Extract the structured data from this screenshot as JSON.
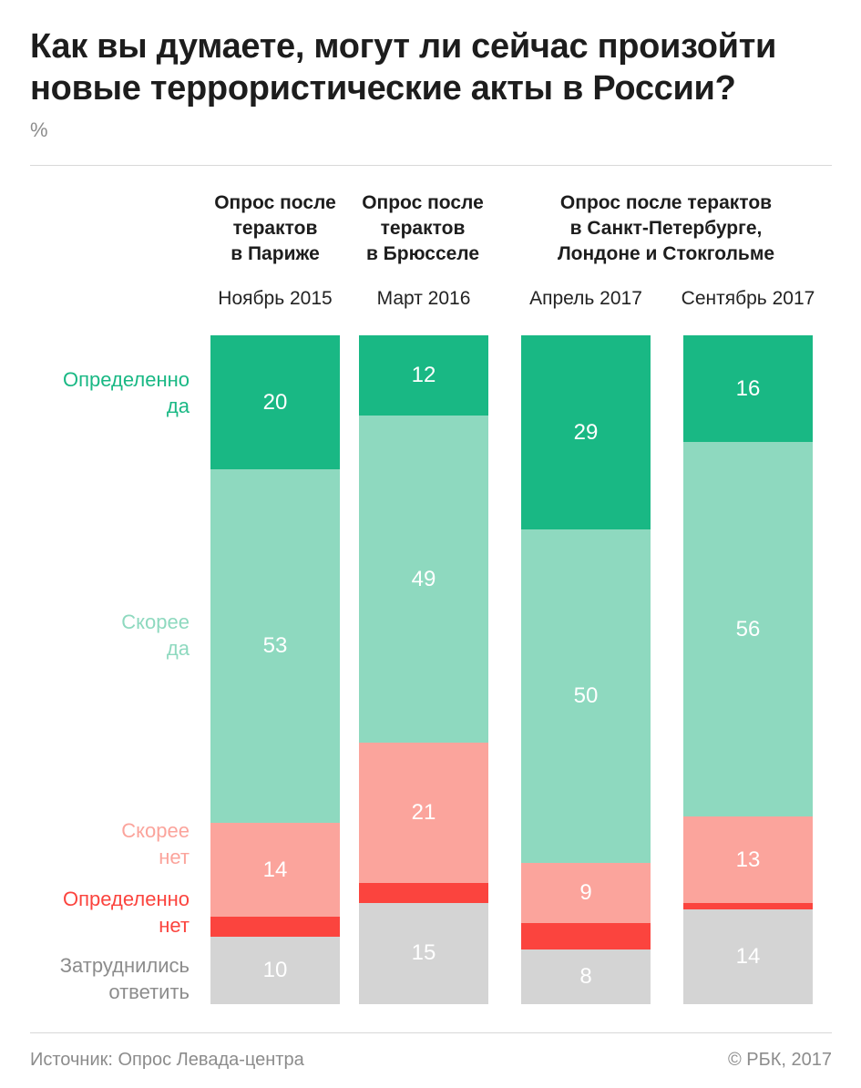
{
  "header": {
    "title": "Как вы думаете, могут ли сейчас произойти новые террористические акты в России?",
    "unit": "%"
  },
  "groups": [
    {
      "label": "Опрос после\nтерактов\nв Париже"
    },
    {
      "label": "Опрос после\nтерактов\nв Брюсселе"
    },
    {
      "label": "Опрос после терактов\nв Санкт-Петербурге,\nЛондоне и Стокгольме"
    }
  ],
  "legend": [
    {
      "label": "Определенно\nда",
      "color": "#19b884"
    },
    {
      "label": "Скорее\nда",
      "color": "#8ed9bf"
    },
    {
      "label": "Скорее\nнет",
      "color": "#fba49c"
    },
    {
      "label": "Определенно\nнет",
      "color": "#fb443e"
    },
    {
      "label": "Затруднились\nответить",
      "color": "#d4d4d4"
    }
  ],
  "chart_data": {
    "type": "bar",
    "stacked": true,
    "orientation": "vertical",
    "categories": [
      "Ноябрь 2015",
      "Март 2016",
      "Апрель 2017",
      "Сентябрь 2017"
    ],
    "series": [
      {
        "name": "Определенно да",
        "color": "#19b884",
        "values": [
          20,
          12,
          29,
          16
        ]
      },
      {
        "name": "Скорее да",
        "color": "#8ed9bf",
        "values": [
          53,
          49,
          50,
          56
        ]
      },
      {
        "name": "Скорее нет",
        "color": "#fba49c",
        "values": [
          14,
          21,
          9,
          13
        ]
      },
      {
        "name": "Определенно нет",
        "color": "#fb443e",
        "values": [
          3,
          3,
          4,
          1
        ]
      },
      {
        "name": "Затруднились ответить",
        "color": "#d4d4d4",
        "values": [
          10,
          15,
          8,
          14
        ]
      }
    ],
    "data_labels": [
      [
        "20",
        "53",
        "14",
        "",
        "10"
      ],
      [
        "12",
        "49",
        "21",
        "",
        "15"
      ],
      [
        "29",
        "50",
        "9",
        "",
        "8"
      ],
      [
        "16",
        "56",
        "13",
        "",
        "14"
      ]
    ],
    "ylim": [
      0,
      100
    ]
  },
  "footer": {
    "source": "Источник: Опрос Левада-центра",
    "copyright": "© РБК, 2017"
  }
}
